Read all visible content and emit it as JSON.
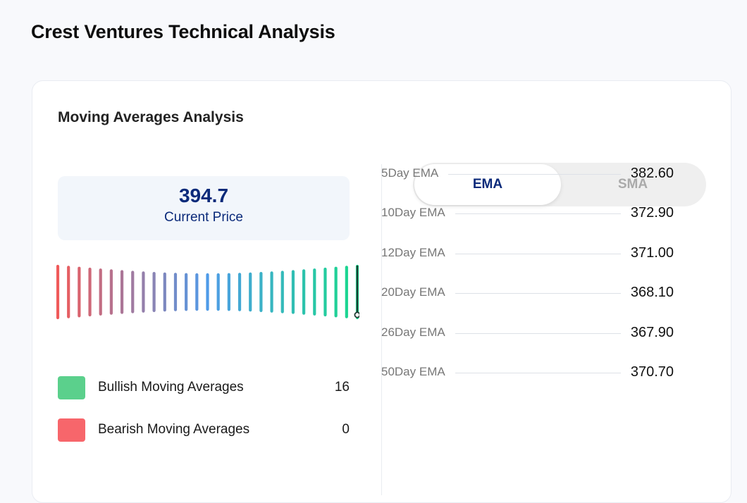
{
  "page": {
    "title": "Crest Ventures Technical Analysis"
  },
  "moving_averages": {
    "title": "Moving Averages Analysis",
    "current_price": {
      "value": "394.7",
      "label": "Current Price"
    },
    "gauge": {
      "bar_count": 29,
      "level_fraction": 1.0,
      "low_color": "#f05a5a",
      "mid_color": "#4f9be8",
      "high_color": "#18d98b"
    },
    "legend": [
      {
        "label": "Bullish Moving Averages",
        "count": "16",
        "color": "#5bd08c"
      },
      {
        "label": "Bearish Moving Averages",
        "count": "0",
        "color": "#f7666b"
      }
    ]
  },
  "tabs": {
    "ema": "EMA",
    "sma": "SMA",
    "active": "EMA"
  },
  "ema_rows": [
    {
      "name": "5Day EMA",
      "value": "382.60"
    },
    {
      "name": "10Day EMA",
      "value": "372.90"
    },
    {
      "name": "12Day EMA",
      "value": "371.00"
    },
    {
      "name": "20Day EMA",
      "value": "368.10"
    },
    {
      "name": "26Day EMA",
      "value": "367.90"
    },
    {
      "name": "50Day EMA",
      "value": "370.70"
    }
  ]
}
